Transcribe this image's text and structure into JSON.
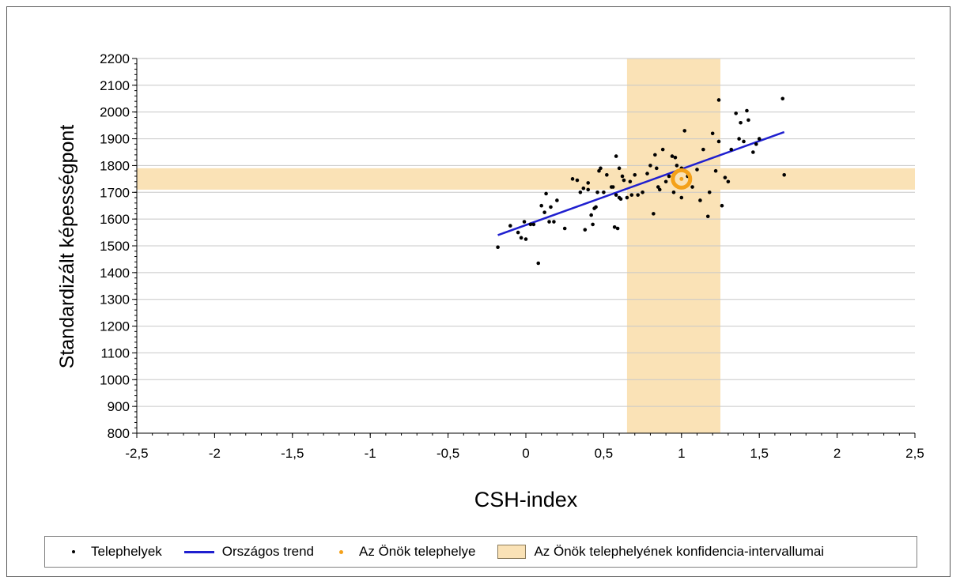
{
  "chart_data": {
    "type": "scatter",
    "xlabel": "CSH-index",
    "ylabel": "Standardizált képességpont",
    "xlim": [
      -2.5,
      2.5
    ],
    "ylim": [
      800,
      2200
    ],
    "x_ticks": [
      "-2,5",
      "-2",
      "-1,5",
      "-1",
      "-0,5",
      "0",
      "0,5",
      "1",
      "1,5",
      "2",
      "2,5"
    ],
    "y_ticks": [
      "800",
      "900",
      "1000",
      "1100",
      "1200",
      "1300",
      "1400",
      "1500",
      "1600",
      "1700",
      "1800",
      "1900",
      "2000",
      "2100",
      "2200"
    ],
    "grid": true,
    "legend_position": "bottom",
    "legend": [
      "Telephelyek",
      "Országos trend",
      "Az Önök telephelye",
      "Az Önök telephelyének konfidencia-intervallumai"
    ],
    "series": [
      {
        "name": "Telephelyek",
        "kind": "scatter",
        "x": [
          -0.18,
          -0.1,
          -0.05,
          -0.03,
          -0.01,
          0.0,
          0.05,
          0.08,
          0.12,
          0.13,
          0.15,
          0.16,
          0.2,
          0.25,
          0.33,
          0.35,
          0.37,
          0.38,
          0.4,
          0.4,
          0.42,
          0.43,
          0.45,
          0.46,
          0.47,
          0.48,
          0.5,
          0.52,
          0.55,
          0.57,
          0.58,
          0.58,
          0.59,
          0.6,
          0.6,
          0.61,
          0.62,
          0.63,
          0.65,
          0.68,
          0.7,
          0.75,
          0.78,
          0.8,
          0.82,
          0.83,
          0.85,
          0.86,
          0.88,
          0.9,
          0.92,
          0.94,
          0.95,
          0.97,
          1.0,
          1.0,
          1.02,
          1.04,
          1.07,
          1.1,
          1.12,
          1.14,
          1.17,
          1.2,
          1.22,
          1.24,
          1.26,
          1.28,
          1.3,
          1.32,
          1.35,
          1.37,
          1.38,
          1.4,
          1.42,
          1.43,
          1.46,
          1.48,
          1.5,
          1.65,
          1.66,
          0.03,
          0.1,
          0.18,
          0.3,
          0.44,
          0.56,
          0.67,
          0.72,
          0.84,
          0.96,
          1.18,
          1.24
        ],
        "y": [
          1495,
          1575,
          1550,
          1530,
          1590,
          1525,
          1580,
          1435,
          1625,
          1695,
          1590,
          1645,
          1670,
          1565,
          1745,
          1700,
          1715,
          1560,
          1735,
          1710,
          1615,
          1580,
          1645,
          1700,
          1780,
          1790,
          1700,
          1765,
          1720,
          1570,
          1835,
          1690,
          1565,
          1680,
          1790,
          1675,
          1760,
          1745,
          1680,
          1690,
          1765,
          1700,
          1770,
          1800,
          1620,
          1840,
          1720,
          1710,
          1860,
          1740,
          1760,
          1835,
          1700,
          1800,
          1790,
          1680,
          1930,
          1760,
          1720,
          1785,
          1670,
          1860,
          1610,
          1920,
          1780,
          2045,
          1650,
          1755,
          1740,
          1860,
          1995,
          1900,
          1960,
          1890,
          2005,
          1970,
          1850,
          1880,
          1900,
          2050,
          1765,
          1580,
          1650,
          1590,
          1750,
          1640,
          1720,
          1740,
          1690,
          1790,
          1830,
          1700,
          1890
        ]
      },
      {
        "name": "Országos trend",
        "kind": "line",
        "x": [
          -0.18,
          1.66
        ],
        "y": [
          1540,
          1925
        ]
      },
      {
        "name": "Az Önök telephelye",
        "kind": "highlight",
        "x": [
          1.0
        ],
        "y": [
          1750
        ]
      }
    ],
    "confidence_interval": {
      "x_range": [
        0.65,
        1.25
      ],
      "y_range": [
        1710,
        1790
      ]
    },
    "colors": {
      "points": "#000000",
      "trend": "#1f1fcf",
      "own_site": "#f4a11a",
      "confidence": "#fae2b6",
      "grid": "#c8c8c8"
    }
  }
}
